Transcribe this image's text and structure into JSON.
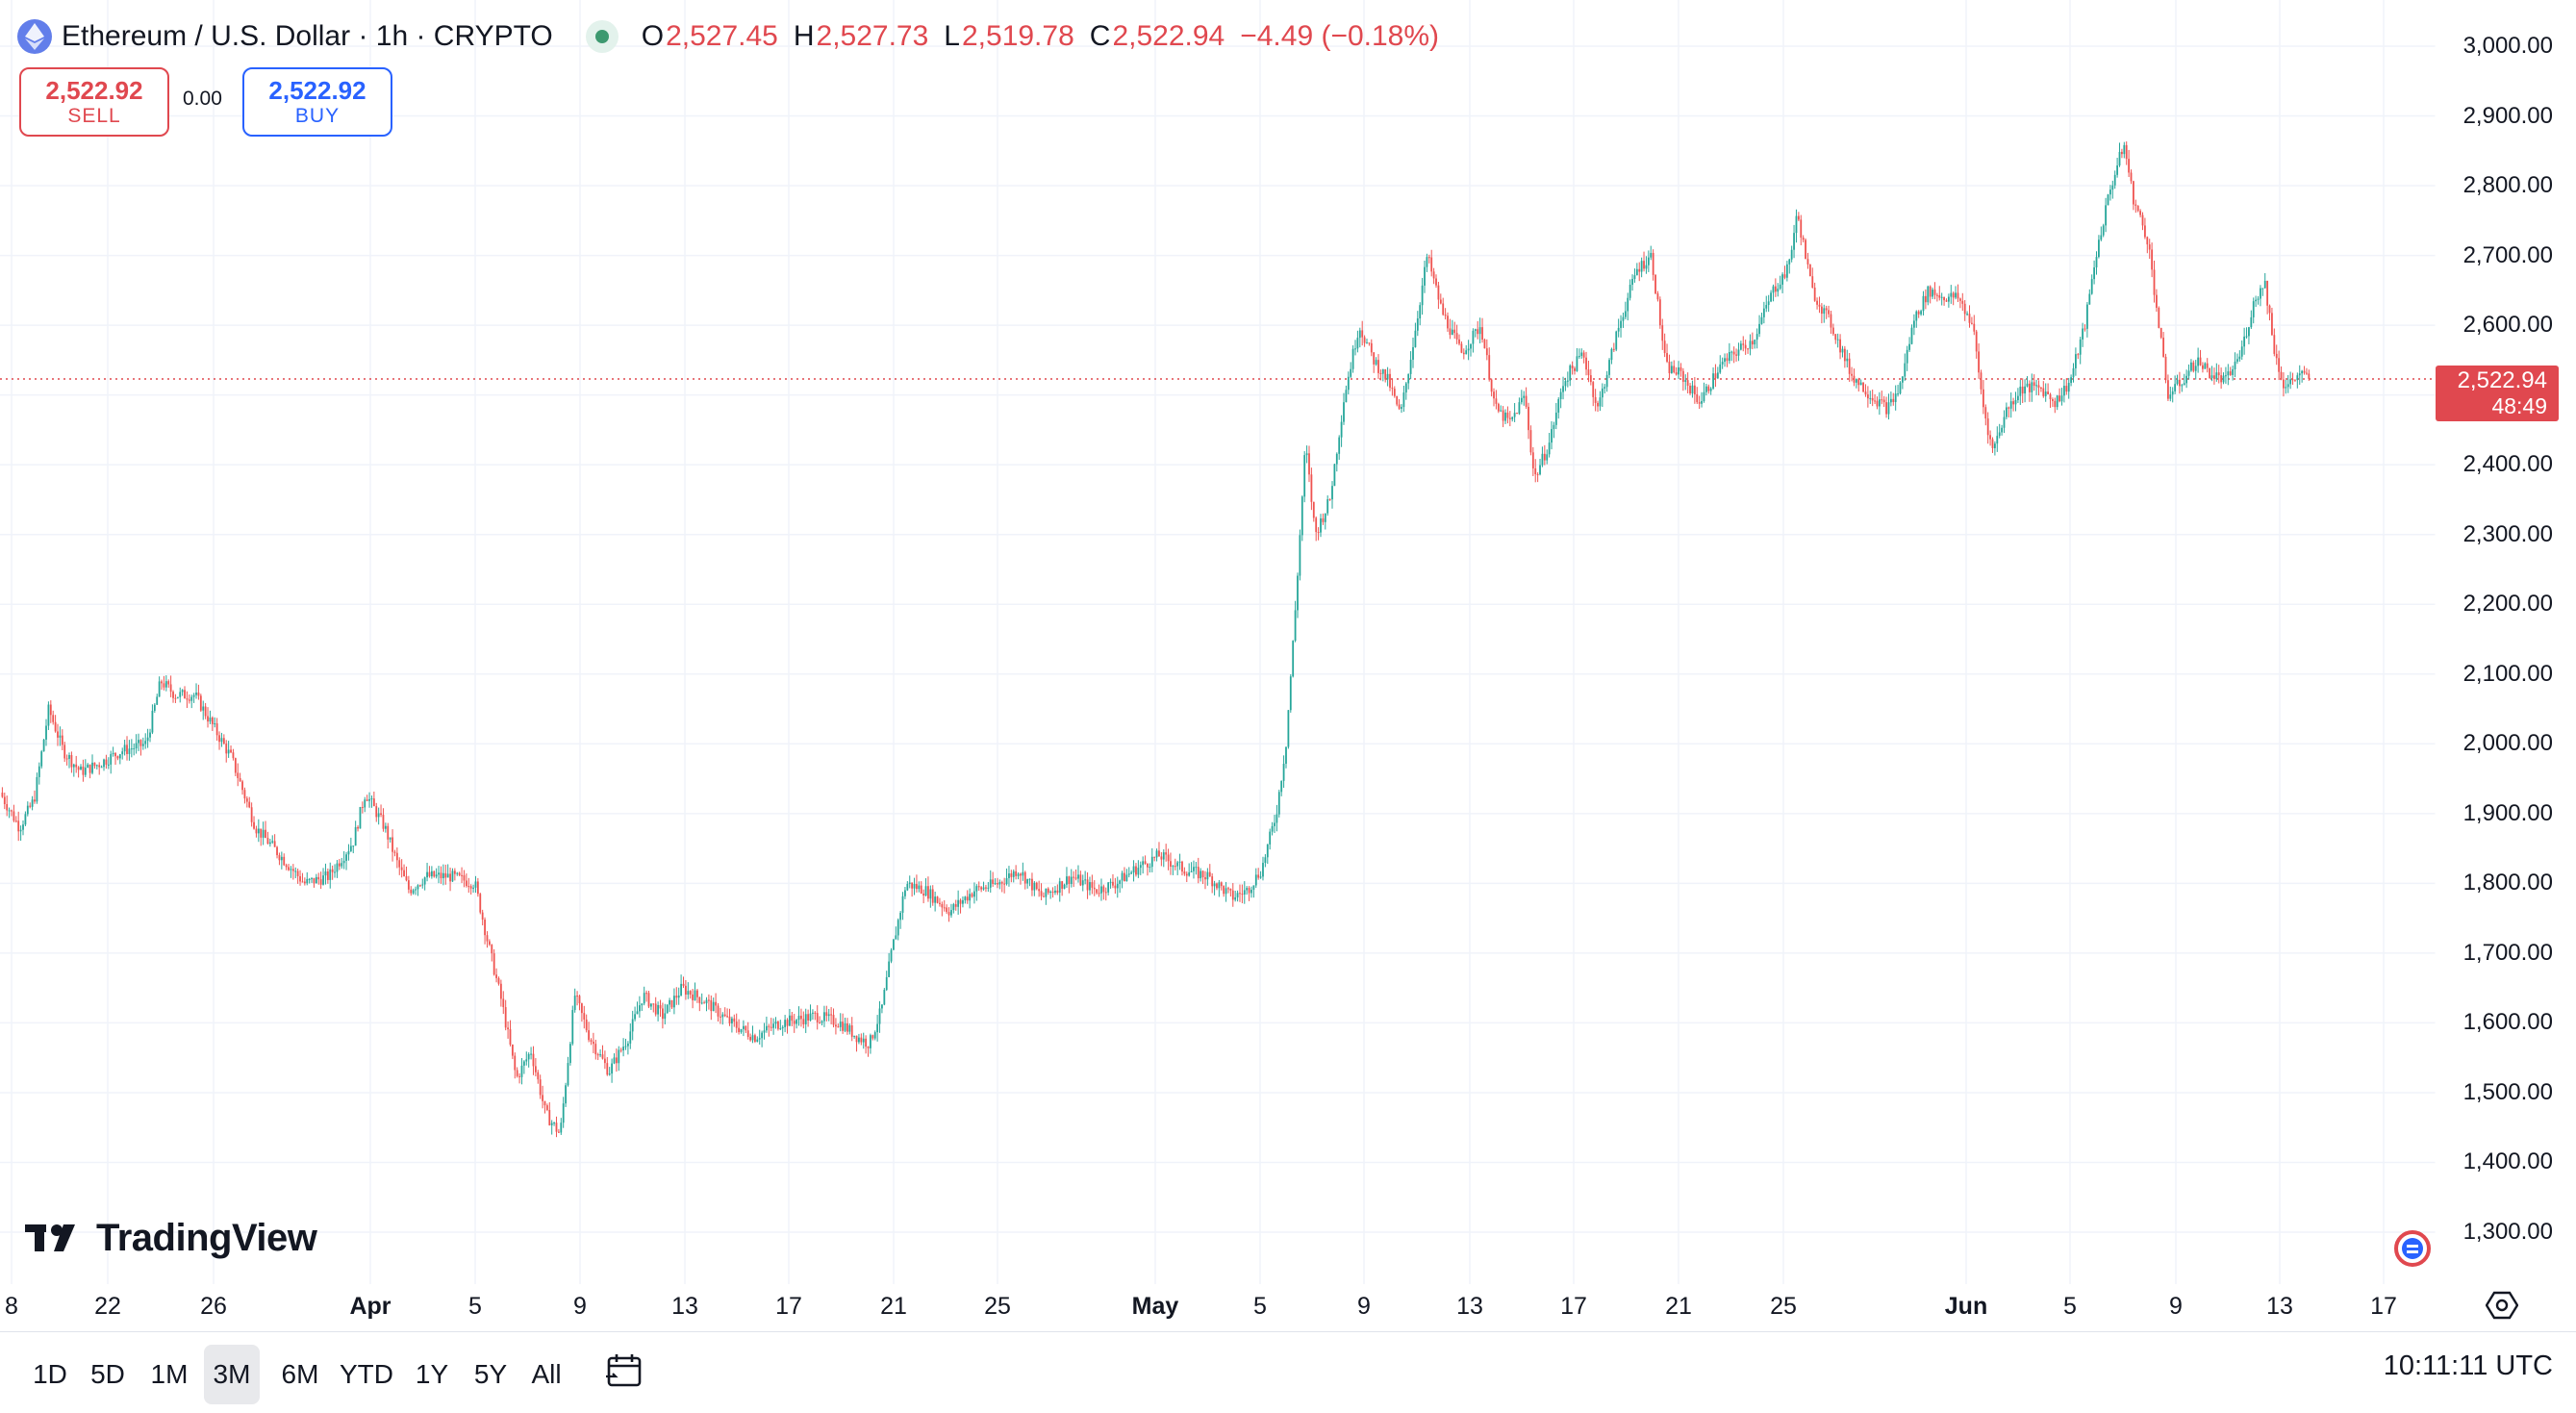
{
  "header": {
    "symbol_title": "Ethereum / U.S. Dollar · 1h · CRYPTO",
    "icon": "ethereum-icon",
    "ohlc": {
      "open_key": "O",
      "open": "2,527.45",
      "high_key": "H",
      "high": "2,527.73",
      "low_key": "L",
      "low": "2,519.78",
      "close_key": "C",
      "close": "2,522.94",
      "change": "−4.49 (−0.18%)"
    }
  },
  "trade": {
    "sell_price": "2,522.92",
    "sell_label": "SELL",
    "spread": "0.00",
    "buy_price": "2,522.92",
    "buy_label": "BUY"
  },
  "price_tag": {
    "price": "2,522.94",
    "countdown": "48:49"
  },
  "brand": {
    "name": "TradingView"
  },
  "colors": {
    "up": "#26a69a",
    "down": "#ef5350",
    "accent": "#2962ff",
    "current_price": "#e0484f"
  },
  "toolbar": {
    "ranges": [
      "1D",
      "5D",
      "1M",
      "3M",
      "6M",
      "YTD",
      "1Y",
      "5Y",
      "All"
    ],
    "active_range": "3M",
    "time": "10:11:11 UTC",
    "calendar_icon": "calendar-range-icon",
    "settings_icon": "gear-icon"
  },
  "chart_data": {
    "type": "candlestick",
    "title": "Ethereum / U.S. Dollar · 1h · CRYPTO",
    "interval": "1h",
    "current_price": 2522.94,
    "ylim": [
      1250,
      3050
    ],
    "y_ticks": [
      "1,300.00",
      "1,400.00",
      "1,500.00",
      "1,600.00",
      "1,700.00",
      "1,800.00",
      "1,900.00",
      "2,000.00",
      "2,100.00",
      "2,200.00",
      "2,300.00",
      "2,400.00",
      "2,500.00",
      "2,600.00",
      "2,700.00",
      "2,800.00",
      "2,900.00",
      "3,000.00"
    ],
    "x_ticks": [
      {
        "label": "8",
        "month": false
      },
      {
        "label": "22",
        "month": false
      },
      {
        "label": "26",
        "month": false
      },
      {
        "label": "Apr",
        "month": true
      },
      {
        "label": "5",
        "month": false
      },
      {
        "label": "9",
        "month": false
      },
      {
        "label": "13",
        "month": false
      },
      {
        "label": "17",
        "month": false
      },
      {
        "label": "21",
        "month": false
      },
      {
        "label": "25",
        "month": false
      },
      {
        "label": "May",
        "month": true
      },
      {
        "label": "5",
        "month": false
      },
      {
        "label": "9",
        "month": false
      },
      {
        "label": "13",
        "month": false
      },
      {
        "label": "17",
        "month": false
      },
      {
        "label": "21",
        "month": false
      },
      {
        "label": "25",
        "month": false
      },
      {
        "label": "Jun",
        "month": true
      },
      {
        "label": "5",
        "month": false
      },
      {
        "label": "9",
        "month": false
      },
      {
        "label": "13",
        "month": false
      },
      {
        "label": "17",
        "month": false
      }
    ],
    "price_path": [
      [
        0,
        1930
      ],
      [
        0.008,
        1880
      ],
      [
        0.014,
        1920
      ],
      [
        0.02,
        2050
      ],
      [
        0.026,
        1990
      ],
      [
        0.033,
        1960
      ],
      [
        0.04,
        1970
      ],
      [
        0.05,
        1990
      ],
      [
        0.06,
        2000
      ],
      [
        0.066,
        2090
      ],
      [
        0.072,
        2070
      ],
      [
        0.08,
        2070
      ],
      [
        0.09,
        2010
      ],
      [
        0.095,
        1980
      ],
      [
        0.105,
        1880
      ],
      [
        0.115,
        1840
      ],
      [
        0.125,
        1800
      ],
      [
        0.135,
        1810
      ],
      [
        0.145,
        1860
      ],
      [
        0.15,
        1930
      ],
      [
        0.158,
        1880
      ],
      [
        0.163,
        1830
      ],
      [
        0.168,
        1790
      ],
      [
        0.175,
        1810
      ],
      [
        0.185,
        1810
      ],
      [
        0.195,
        1800
      ],
      [
        0.2,
        1720
      ],
      [
        0.206,
        1630
      ],
      [
        0.212,
        1520
      ],
      [
        0.218,
        1560
      ],
      [
        0.224,
        1470
      ],
      [
        0.23,
        1440
      ],
      [
        0.236,
        1640
      ],
      [
        0.242,
        1580
      ],
      [
        0.25,
        1530
      ],
      [
        0.258,
        1580
      ],
      [
        0.264,
        1640
      ],
      [
        0.272,
        1610
      ],
      [
        0.28,
        1650
      ],
      [
        0.29,
        1630
      ],
      [
        0.3,
        1600
      ],
      [
        0.31,
        1580
      ],
      [
        0.32,
        1600
      ],
      [
        0.335,
        1610
      ],
      [
        0.345,
        1600
      ],
      [
        0.352,
        1580
      ],
      [
        0.357,
        1570
      ],
      [
        0.362,
        1620
      ],
      [
        0.366,
        1700
      ],
      [
        0.372,
        1800
      ],
      [
        0.38,
        1790
      ],
      [
        0.39,
        1760
      ],
      [
        0.4,
        1790
      ],
      [
        0.41,
        1800
      ],
      [
        0.418,
        1820
      ],
      [
        0.428,
        1780
      ],
      [
        0.44,
        1810
      ],
      [
        0.45,
        1790
      ],
      [
        0.458,
        1800
      ],
      [
        0.466,
        1820
      ],
      [
        0.476,
        1840
      ],
      [
        0.486,
        1820
      ],
      [
        0.496,
        1810
      ],
      [
        0.506,
        1780
      ],
      [
        0.512,
        1790
      ],
      [
        0.518,
        1820
      ],
      [
        0.524,
        1900
      ],
      [
        0.528,
        2000
      ],
      [
        0.532,
        2200
      ],
      [
        0.536,
        2430
      ],
      [
        0.54,
        2300
      ],
      [
        0.546,
        2350
      ],
      [
        0.552,
        2500
      ],
      [
        0.558,
        2600
      ],
      [
        0.564,
        2550
      ],
      [
        0.57,
        2520
      ],
      [
        0.575,
        2470
      ],
      [
        0.58,
        2570
      ],
      [
        0.586,
        2700
      ],
      [
        0.592,
        2620
      ],
      [
        0.6,
        2560
      ],
      [
        0.608,
        2600
      ],
      [
        0.614,
        2480
      ],
      [
        0.62,
        2460
      ],
      [
        0.626,
        2500
      ],
      [
        0.63,
        2380
      ],
      [
        0.636,
        2430
      ],
      [
        0.642,
        2520
      ],
      [
        0.65,
        2560
      ],
      [
        0.656,
        2480
      ],
      [
        0.664,
        2590
      ],
      [
        0.672,
        2680
      ],
      [
        0.678,
        2700
      ],
      [
        0.684,
        2540
      ],
      [
        0.69,
        2530
      ],
      [
        0.698,
        2490
      ],
      [
        0.706,
        2540
      ],
      [
        0.712,
        2560
      ],
      [
        0.72,
        2580
      ],
      [
        0.728,
        2650
      ],
      [
        0.734,
        2680
      ],
      [
        0.738,
        2760
      ],
      [
        0.744,
        2650
      ],
      [
        0.752,
        2600
      ],
      [
        0.76,
        2530
      ],
      [
        0.768,
        2500
      ],
      [
        0.775,
        2480
      ],
      [
        0.78,
        2510
      ],
      [
        0.786,
        2610
      ],
      [
        0.792,
        2650
      ],
      [
        0.798,
        2640
      ],
      [
        0.804,
        2640
      ],
      [
        0.81,
        2600
      ],
      [
        0.814,
        2490
      ],
      [
        0.818,
        2420
      ],
      [
        0.824,
        2480
      ],
      [
        0.83,
        2510
      ],
      [
        0.838,
        2510
      ],
      [
        0.844,
        2490
      ],
      [
        0.85,
        2520
      ],
      [
        0.856,
        2600
      ],
      [
        0.86,
        2690
      ],
      [
        0.866,
        2790
      ],
      [
        0.872,
        2860
      ],
      [
        0.876,
        2780
      ],
      [
        0.882,
        2720
      ],
      [
        0.886,
        2610
      ],
      [
        0.89,
        2500
      ],
      [
        0.896,
        2520
      ],
      [
        0.902,
        2550
      ],
      [
        0.908,
        2530
      ],
      [
        0.914,
        2520
      ],
      [
        0.92,
        2560
      ],
      [
        0.926,
        2640
      ],
      [
        0.93,
        2660
      ],
      [
        0.934,
        2560
      ],
      [
        0.938,
        2510
      ],
      [
        0.944,
        2530
      ],
      [
        0.948,
        2522.94
      ]
    ]
  }
}
